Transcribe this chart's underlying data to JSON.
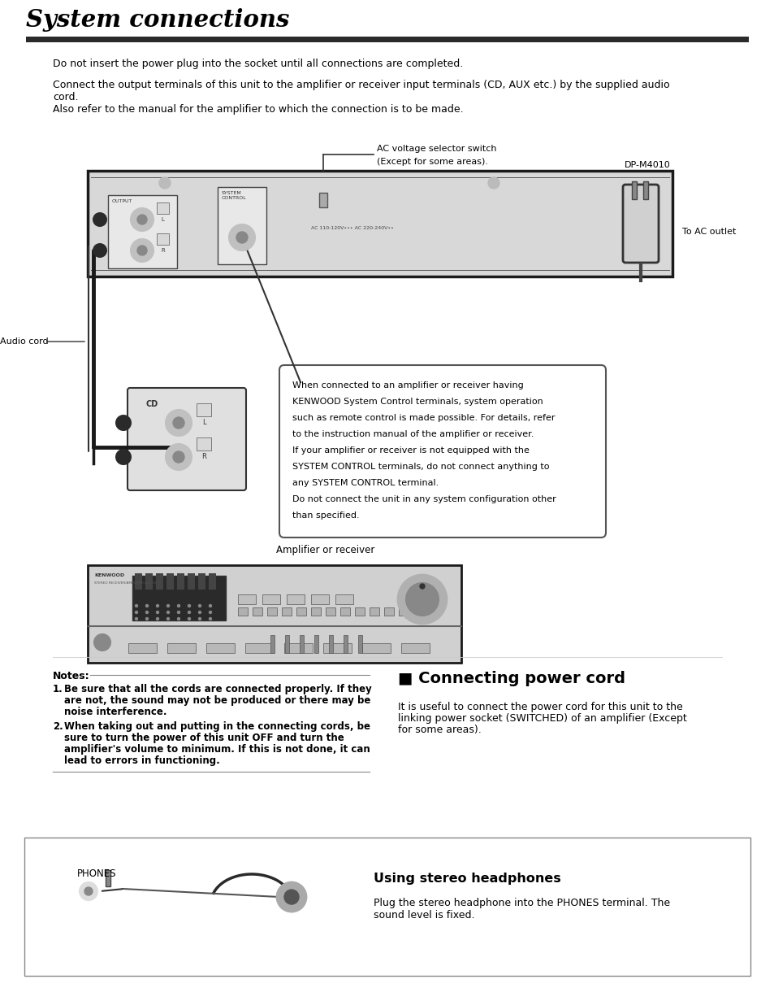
{
  "title": "System connections",
  "bg_color": "#ffffff",
  "title_color": "#000000",
  "intro_line1": "Do not insert the power plug into the socket until all connections are completed.",
  "intro_line2a": "Connect the output terminals of this unit to the amplifier or receiver input terminals (CD, AUX etc.) by the supplied audio",
  "intro_line2b": "cord.",
  "intro_line3": "Also refer to the manual for the amplifier to which the connection is to be made.",
  "ac_label_line1": "AC voltage selector switch",
  "ac_label_line2": "(Except for some areas).",
  "dp_label": "DP-M4010",
  "audio_cord_label": "Audio cord",
  "ac_outlet_label": "To AC outlet",
  "amp_receiver_label": "Amplifier or receiver",
  "output_label": "OUTPUT",
  "system_control_label": "SYSTEM\nCONTROL",
  "ac_text": "AC 110-120V••• AC 220-240V••",
  "cd_label": "CD",
  "system_control_text_lines": [
    "When connected to an amplifier or receiver having",
    "KENWOOD System Control terminals, system operation",
    "such as remote control is made possible. For details, refer",
    "to the instruction manual of the amplifier or receiver.",
    "If your amplifier or receiver is not equipped with the",
    "SYSTEM CONTROL terminals, do not connect anything to",
    "any SYSTEM CONTROL terminal.",
    "Do not connect the unit in any system configuration other",
    "than specified."
  ],
  "notes_header": "Notes:",
  "note1_label": "1.",
  "note1_line1": " Be sure that all the cords are connected properly. If they",
  "note1_line2": "   are not, the sound may not be produced or there may be",
  "note1_line3": "   noise interference.",
  "note2_label": "2.",
  "note2_line1": " When taking out and putting in the connecting cords, be",
  "note2_line2": "   sure to turn the power of this unit OFF and turn the",
  "note2_line3": "   amplifier's volume to minimum. If this is not done, it can",
  "note2_line4": "   lead to errors in functioning.",
  "connecting_title": "■ Connecting power cord",
  "connecting_text_line1": "It is useful to connect the power cord for this unit to the",
  "connecting_text_line2": "linking power socket (SWITCHED) of an amplifier (Except",
  "connecting_text_line3": "for some areas).",
  "headphones_title": "Using stereo headphones",
  "headphones_label": "PHONES",
  "headphones_text_line1": "Plug the stereo headphone into the PHONES terminal. The",
  "headphones_text_line2": "sound level is fixed."
}
